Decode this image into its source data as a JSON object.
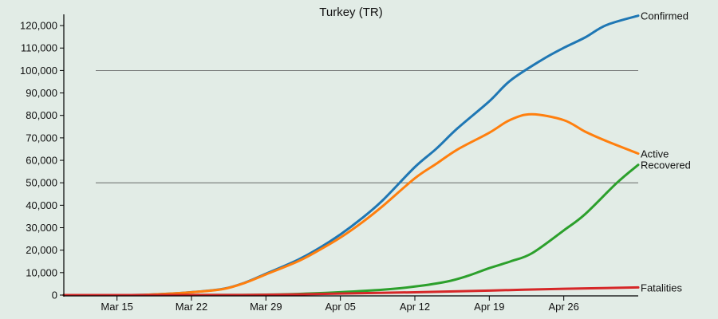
{
  "chart_data": {
    "type": "line",
    "title": "Turkey (TR)",
    "xlabel": "",
    "ylabel": "",
    "x_start": "2020-03-10",
    "x_end": "2020-05-03",
    "xlim": [
      "2020-03-10",
      "2020-05-03"
    ],
    "ylim": [
      0,
      125000
    ],
    "x_ticks": [
      {
        "date": "2020-03-15",
        "label": "Mar 15"
      },
      {
        "date": "2020-03-22",
        "label": "Mar 22"
      },
      {
        "date": "2020-03-29",
        "label": "Mar 29"
      },
      {
        "date": "2020-04-05",
        "label": "Apr 05"
      },
      {
        "date": "2020-04-12",
        "label": "Apr 12"
      },
      {
        "date": "2020-04-19",
        "label": "Apr 19"
      },
      {
        "date": "2020-04-26",
        "label": "Apr 26"
      }
    ],
    "y_ticks": [
      {
        "value": 0,
        "label": "0"
      },
      {
        "value": 10000,
        "label": "10,000"
      },
      {
        "value": 20000,
        "label": "20,000"
      },
      {
        "value": 30000,
        "label": "30,000"
      },
      {
        "value": 40000,
        "label": "40,000"
      },
      {
        "value": 50000,
        "label": "50,000"
      },
      {
        "value": 60000,
        "label": "60,000"
      },
      {
        "value": 70000,
        "label": "70,000"
      },
      {
        "value": 80000,
        "label": "80,000"
      },
      {
        "value": 90000,
        "label": "90,000"
      },
      {
        "value": 100000,
        "label": "100,000"
      },
      {
        "value": 110000,
        "label": "110,000"
      },
      {
        "value": 120000,
        "label": "120,000"
      }
    ],
    "reference_lines": [
      50000,
      100000
    ],
    "series": [
      {
        "name": "Confirmed",
        "color": "#1f77b4",
        "points": [
          [
            "2020-03-10",
            0
          ],
          [
            "2020-03-15",
            0
          ],
          [
            "2020-03-18",
            200
          ],
          [
            "2020-03-22",
            1300
          ],
          [
            "2020-03-25",
            2800
          ],
          [
            "2020-03-27",
            5500
          ],
          [
            "2020-03-29",
            9500
          ],
          [
            "2020-04-01",
            15700
          ],
          [
            "2020-04-03",
            20900
          ],
          [
            "2020-04-05",
            27000
          ],
          [
            "2020-04-07",
            34100
          ],
          [
            "2020-04-09",
            42300
          ],
          [
            "2020-04-12",
            57000
          ],
          [
            "2020-04-14",
            65100
          ],
          [
            "2020-04-16",
            74200
          ],
          [
            "2020-04-19",
            86300
          ],
          [
            "2020-04-21",
            95600
          ],
          [
            "2020-04-24",
            104900
          ],
          [
            "2020-04-26",
            110100
          ],
          [
            "2020-04-28",
            114700
          ],
          [
            "2020-04-30",
            120200
          ],
          [
            "2020-05-03",
            124400
          ]
        ]
      },
      {
        "name": "Active",
        "color": "#ff7f0e",
        "points": [
          [
            "2020-03-10",
            0
          ],
          [
            "2020-03-15",
            0
          ],
          [
            "2020-03-18",
            200
          ],
          [
            "2020-03-22",
            1250
          ],
          [
            "2020-03-25",
            2700
          ],
          [
            "2020-03-27",
            5400
          ],
          [
            "2020-03-29",
            9200
          ],
          [
            "2020-04-01",
            15000
          ],
          [
            "2020-04-03",
            20000
          ],
          [
            "2020-04-05",
            25600
          ],
          [
            "2020-04-07",
            32200
          ],
          [
            "2020-04-09",
            39700
          ],
          [
            "2020-04-12",
            52000
          ],
          [
            "2020-04-14",
            58400
          ],
          [
            "2020-04-16",
            64800
          ],
          [
            "2020-04-19",
            72300
          ],
          [
            "2020-04-21",
            78100
          ],
          [
            "2020-04-23",
            80500
          ],
          [
            "2020-04-26",
            77900
          ],
          [
            "2020-04-28",
            72800
          ],
          [
            "2020-04-30",
            68600
          ],
          [
            "2020-05-03",
            63000
          ]
        ]
      },
      {
        "name": "Recovered",
        "color": "#2ca02c",
        "points": [
          [
            "2020-03-10",
            0
          ],
          [
            "2020-03-25",
            50
          ],
          [
            "2020-03-29",
            200
          ],
          [
            "2020-04-01",
            500
          ],
          [
            "2020-04-05",
            1300
          ],
          [
            "2020-04-09",
            2400
          ],
          [
            "2020-04-12",
            3800
          ],
          [
            "2020-04-15",
            6000
          ],
          [
            "2020-04-17",
            8600
          ],
          [
            "2020-04-19",
            12000
          ],
          [
            "2020-04-21",
            15000
          ],
          [
            "2020-04-23",
            18600
          ],
          [
            "2020-04-26",
            28800
          ],
          [
            "2020-04-28",
            36000
          ],
          [
            "2020-05-01",
            50000
          ],
          [
            "2020-05-03",
            58000
          ]
        ]
      },
      {
        "name": "Fatalities",
        "color": "#d62728",
        "points": [
          [
            "2020-03-10",
            0
          ],
          [
            "2020-03-22",
            30
          ],
          [
            "2020-03-29",
            130
          ],
          [
            "2020-04-05",
            650
          ],
          [
            "2020-04-12",
            1250
          ],
          [
            "2020-04-19",
            2000
          ],
          [
            "2020-04-26",
            2800
          ],
          [
            "2020-05-03",
            3400
          ]
        ]
      }
    ]
  }
}
